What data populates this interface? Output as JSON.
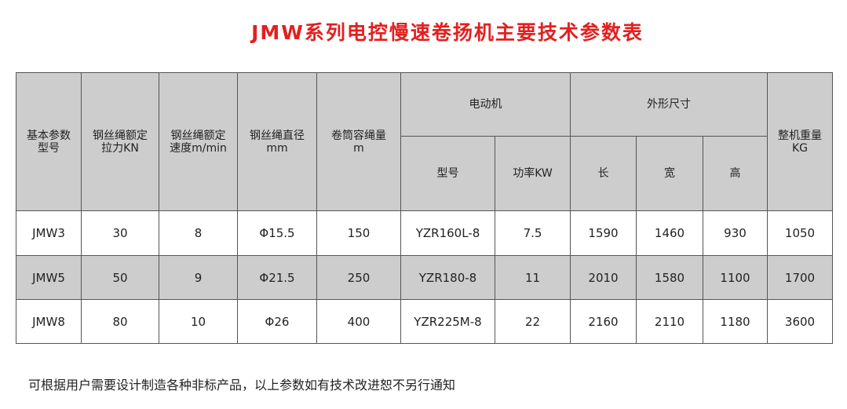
{
  "title": "JMW系列电控慢速卷扬机主要技术参数表",
  "headers": {
    "model": [
      "基本参数",
      "型号"
    ],
    "force": [
      "钢丝绳额定",
      "拉力KN"
    ],
    "speed": [
      "钢丝绳额定",
      "速度m/min"
    ],
    "diameter": [
      "钢丝绳直径",
      "mm"
    ],
    "capacity": [
      "卷筒容绳量",
      "m"
    ],
    "motor": "电动机",
    "motor_model": "型号",
    "motor_power": "功率KW",
    "dims": "外形尺寸",
    "length": "长",
    "width": "宽",
    "height": "高",
    "weight": [
      "整机重量",
      "KG"
    ]
  },
  "rows": [
    [
      "JMW3",
      "30",
      "8",
      "Φ15.5",
      "150",
      "YZR160L-8",
      "7.5",
      "1590",
      "1460",
      "930",
      "1050"
    ],
    [
      "JMW5",
      "50",
      "9",
      "Φ21.5",
      "250",
      "YZR180-8",
      "11",
      "2010",
      "1580",
      "1100",
      "1700"
    ],
    [
      "JMW8",
      "80",
      "10",
      "Φ26",
      "400",
      "YZR225M-8",
      "22",
      "2160",
      "2110",
      "1180",
      "3600"
    ]
  ],
  "note": "可根据用户需要设计制造各种非标产品，以上参数如有技术改进恕不另行通知",
  "colors": {
    "title": "#e3201f",
    "header_bg": "#cdcdcd"
  }
}
